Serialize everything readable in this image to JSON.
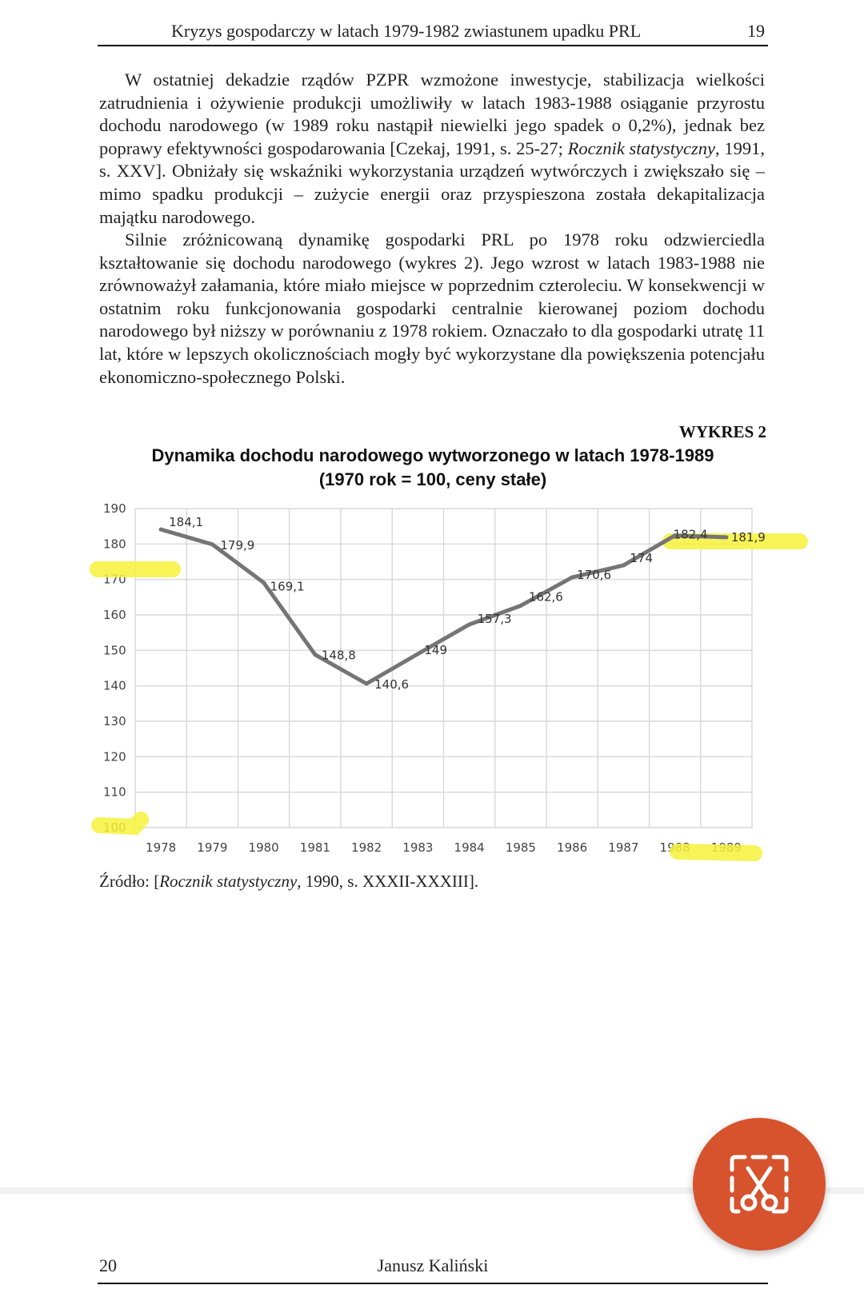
{
  "header": {
    "running_title": "Kryzys gospodarczy w latach 1979-1982 zwiastunem upadku PRL",
    "page_number": "19"
  },
  "paragraph1": {
    "part1": "W ostatniej dekadzie rządów PZPR wzmożone inwestycje, stabilizacja wielkości zatrudnienia i ożywienie produkcji umożliwiły w latach 1983-1988 osiąganie przyrostu dochodu narodowego (w 1989 roku nastąpił niewielki jego spadek o 0,2%), jednak bez poprawy efektywności gospodarowania [Czekaj, 1991, s. 25-27; ",
    "italic": "Rocznik statystyczny",
    "part2": ", 1991, s. XXV]. Obniżały się wskaźniki wykorzystania urządzeń wytwórczych i zwiększało się – mimo spadku produkcji – zużycie energii oraz przyspieszona została dekapitalizacja majątku narodowego."
  },
  "paragraph2": {
    "text": "Silnie zróżnicowaną dynamikę gospodarki PRL po 1978 roku odzwierciedla kształtowanie się dochodu narodowego (wykres 2). Jego wzrost w latach 1983-1988 nie zrównoważył załamania, które miało miejsce w poprzednim czteroleciu. W konsekwencji w ostatnim roku funkcjonowania gospodarki centralnie kierowanej poziom dochodu narodowego był niższy w porównaniu z 1978 rokiem. Oznaczało to dla gospodarki utratę 11 lat, które w lepszych okolicznościach mogły być wykorzystane dla powiększenia potencjału ekonomiczno-społecznego Polski."
  },
  "chart_label": "WYKRES 2",
  "chart_title_line1": "Dynamika dochodu narodowego wytworzonego w latach 1978-1989",
  "chart_title_line2": "(1970 rok = 100, ceny stałe)",
  "chart_data": {
    "type": "line",
    "x": [
      "1978",
      "1979",
      "1980",
      "1981",
      "1982",
      "1983",
      "1984",
      "1985",
      "1986",
      "1987",
      "1988",
      "1989"
    ],
    "values": [
      184.1,
      179.9,
      169.1,
      148.8,
      140.6,
      149,
      157.3,
      162.6,
      170.6,
      174,
      182.4,
      181.9
    ],
    "value_labels": [
      "184,1",
      "179,9",
      "169,1",
      "148,8",
      "140,6",
      "149",
      "157,3",
      "162,6",
      "170,6",
      "174",
      "182,4",
      "181,9"
    ],
    "y_ticks": [
      "190",
      "180",
      "170",
      "160",
      "150",
      "140",
      "130",
      "120",
      "110",
      "100"
    ],
    "ylim": [
      100,
      190
    ],
    "grid": true,
    "line_color": "#757575",
    "highlight_color": "#f7f13a"
  },
  "source": {
    "prefix": "Źródło: [",
    "italic": "Rocznik statystyczny",
    "suffix": ", 1990, s. XXXII-XXXIII]."
  },
  "footer": {
    "page_number": "20",
    "author": "Janusz Kaliński"
  },
  "fab": {
    "icon": "screenshot-scissors-icon",
    "color": "#d6532d"
  }
}
